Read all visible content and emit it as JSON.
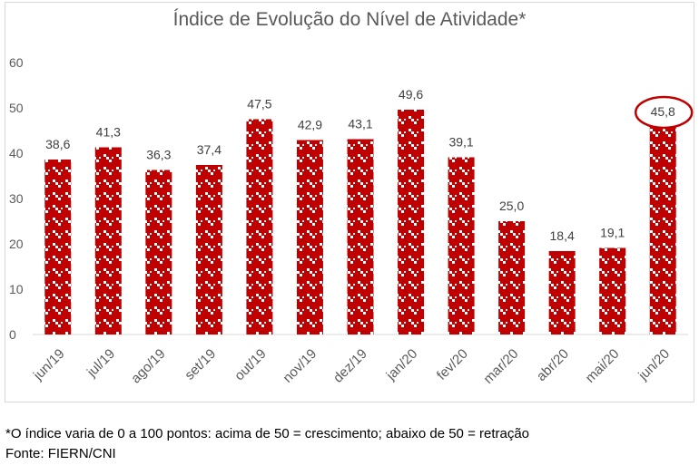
{
  "chart_data": {
    "type": "bar",
    "title": "Índice de Evolução do Nível de Atividade*",
    "categories": [
      "jun/19",
      "jul/19",
      "ago/19",
      "set/19",
      "out/19",
      "nov/19",
      "dez/19",
      "jan/20",
      "fev/20",
      "mar/20",
      "abr/20",
      "mai/20",
      "jun/20"
    ],
    "values": [
      38.6,
      41.3,
      36.3,
      37.4,
      47.5,
      42.9,
      43.1,
      49.6,
      39.1,
      25.0,
      18.4,
      19.1,
      45.8
    ],
    "value_labels": [
      "38,6",
      "41,3",
      "36,3",
      "37,4",
      "47,5",
      "42,9",
      "43,1",
      "49,6",
      "39,1",
      "25,0",
      "18,4",
      "19,1",
      "45,8"
    ],
    "yticks": [
      0,
      10,
      20,
      30,
      40,
      50,
      60
    ],
    "ylim": [
      0,
      60
    ],
    "xlabel": "",
    "ylabel": "",
    "bar_color": "#c00000",
    "highlight_index": 12,
    "highlight_color": "#c00000"
  },
  "notes": {
    "footnote": "*O índice varia de 0 a 100 pontos: acima de 50 = crescimento; abaixo de 50 = retração",
    "source": "Fonte: FIERN/CNI"
  }
}
